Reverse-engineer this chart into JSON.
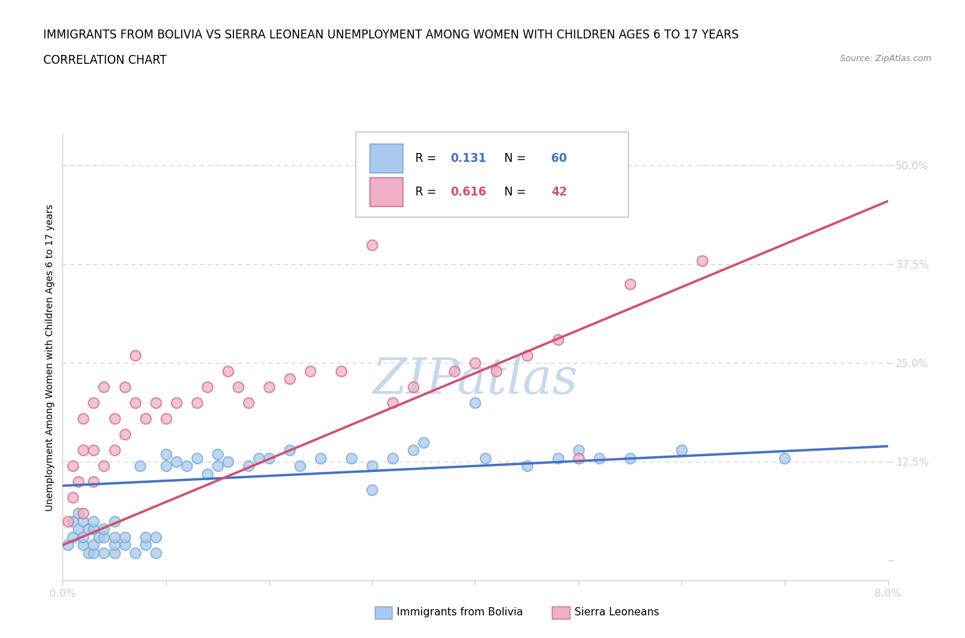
{
  "title_line1": "IMMIGRANTS FROM BOLIVIA VS SIERRA LEONEAN UNEMPLOYMENT AMONG WOMEN WITH CHILDREN AGES 6 TO 17 YEARS",
  "title_line2": "CORRELATION CHART",
  "source_text": "Source: ZipAtlas.com",
  "ylabel": "Unemployment Among Women with Children Ages 6 to 17 years",
  "xlim": [
    0.0,
    0.08
  ],
  "ylim": [
    -0.025,
    0.54
  ],
  "yticks": [
    0.0,
    0.125,
    0.25,
    0.375,
    0.5
  ],
  "ytick_labels": [
    "",
    "12.5%",
    "25.0%",
    "37.5%",
    "50.0%"
  ],
  "xticks": [
    0.0,
    0.01,
    0.02,
    0.03,
    0.04,
    0.05,
    0.06,
    0.07,
    0.08
  ],
  "xtick_labels": [
    "0.0%",
    "",
    "",
    "",
    "",
    "",
    "",
    "",
    "8.0%"
  ],
  "bolivia_scatter_x": [
    0.0005,
    0.001,
    0.001,
    0.0015,
    0.0015,
    0.002,
    0.002,
    0.002,
    0.0025,
    0.0025,
    0.003,
    0.003,
    0.003,
    0.003,
    0.0035,
    0.004,
    0.004,
    0.004,
    0.005,
    0.005,
    0.005,
    0.005,
    0.006,
    0.006,
    0.007,
    0.0075,
    0.008,
    0.008,
    0.009,
    0.009,
    0.01,
    0.01,
    0.011,
    0.012,
    0.013,
    0.014,
    0.015,
    0.015,
    0.016,
    0.018,
    0.019,
    0.02,
    0.022,
    0.023,
    0.025,
    0.028,
    0.03,
    0.03,
    0.032,
    0.034,
    0.035,
    0.04,
    0.041,
    0.045,
    0.048,
    0.05,
    0.052,
    0.055,
    0.06,
    0.07
  ],
  "bolivia_scatter_y": [
    0.02,
    0.03,
    0.05,
    0.04,
    0.06,
    0.02,
    0.03,
    0.05,
    0.01,
    0.04,
    0.01,
    0.02,
    0.04,
    0.05,
    0.03,
    0.01,
    0.03,
    0.04,
    0.01,
    0.02,
    0.03,
    0.05,
    0.02,
    0.03,
    0.01,
    0.12,
    0.02,
    0.03,
    0.01,
    0.03,
    0.12,
    0.135,
    0.125,
    0.12,
    0.13,
    0.11,
    0.12,
    0.135,
    0.125,
    0.12,
    0.13,
    0.13,
    0.14,
    0.12,
    0.13,
    0.13,
    0.12,
    0.09,
    0.13,
    0.14,
    0.15,
    0.2,
    0.13,
    0.12,
    0.13,
    0.14,
    0.13,
    0.13,
    0.14,
    0.13
  ],
  "sierra_scatter_x": [
    0.0005,
    0.001,
    0.001,
    0.0015,
    0.002,
    0.002,
    0.002,
    0.003,
    0.003,
    0.003,
    0.004,
    0.004,
    0.005,
    0.005,
    0.006,
    0.006,
    0.007,
    0.007,
    0.008,
    0.009,
    0.01,
    0.011,
    0.013,
    0.014,
    0.016,
    0.017,
    0.018,
    0.02,
    0.022,
    0.024,
    0.027,
    0.03,
    0.032,
    0.034,
    0.038,
    0.04,
    0.042,
    0.045,
    0.048,
    0.05,
    0.055,
    0.062
  ],
  "sierra_scatter_y": [
    0.05,
    0.08,
    0.12,
    0.1,
    0.06,
    0.14,
    0.18,
    0.1,
    0.14,
    0.2,
    0.12,
    0.22,
    0.14,
    0.18,
    0.16,
    0.22,
    0.2,
    0.26,
    0.18,
    0.2,
    0.18,
    0.2,
    0.2,
    0.22,
    0.24,
    0.22,
    0.2,
    0.22,
    0.23,
    0.24,
    0.24,
    0.4,
    0.2,
    0.22,
    0.24,
    0.25,
    0.24,
    0.26,
    0.28,
    0.13,
    0.35,
    0.38
  ],
  "bolivia_r": "0.131",
  "bolivia_n": "60",
  "sierra_r": "0.616",
  "sierra_n": "42",
  "bolivia_color": "#aac9f0",
  "bolivia_edge_color": "#7aaad0",
  "sierra_color": "#f0b0c8",
  "sierra_edge_color": "#d07090",
  "bolivia_line_color": "#4472c4",
  "sierra_line_color": "#d05070",
  "bolivia_trend_x": [
    0.0,
    0.08
  ],
  "bolivia_trend_y": [
    0.095,
    0.145
  ],
  "sierra_trend_x": [
    0.0,
    0.08
  ],
  "sierra_trend_y": [
    0.02,
    0.455
  ],
  "watermark_color": "#c8d8ec",
  "title_fontsize": 12,
  "subtitle_fontsize": 12,
  "axis_label_fontsize": 10,
  "tick_fontsize": 11,
  "background_color": "#ffffff",
  "grid_color": "#cccccc",
  "ytick_label_color": "#4472c4",
  "xtick_label_color": "#4472c4"
}
